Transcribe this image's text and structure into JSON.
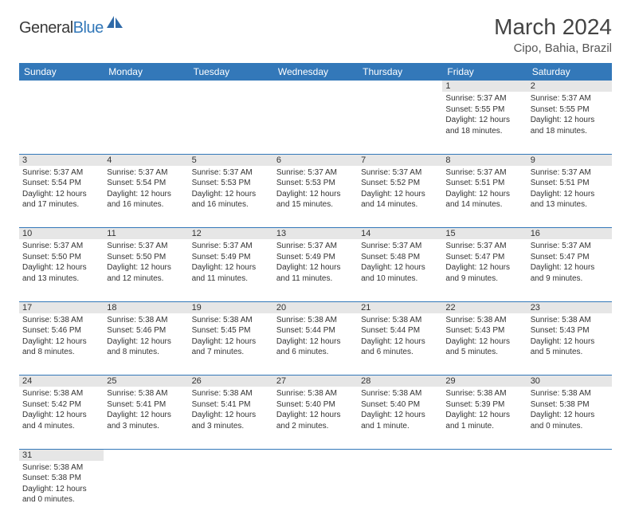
{
  "logo": {
    "part1": "General",
    "part2": "Blue"
  },
  "title": "March 2024",
  "location": "Cipo, Bahia, Brazil",
  "colors": {
    "header_bg": "#3378b9",
    "header_text": "#ffffff",
    "daynum_bg": "#e6e6e6",
    "border": "#3378b9",
    "logo_blue": "#3378b9",
    "logo_gray": "#3a3a3a",
    "body_text": "#333333"
  },
  "headers": [
    "Sunday",
    "Monday",
    "Tuesday",
    "Wednesday",
    "Thursday",
    "Friday",
    "Saturday"
  ],
  "weeks": [
    {
      "nums": [
        "",
        "",
        "",
        "",
        "",
        "1",
        "2"
      ],
      "cells": [
        "",
        "",
        "",
        "",
        "",
        "Sunrise: 5:37 AM\nSunset: 5:55 PM\nDaylight: 12 hours and 18 minutes.",
        "Sunrise: 5:37 AM\nSunset: 5:55 PM\nDaylight: 12 hours and 18 minutes."
      ]
    },
    {
      "nums": [
        "3",
        "4",
        "5",
        "6",
        "7",
        "8",
        "9"
      ],
      "cells": [
        "Sunrise: 5:37 AM\nSunset: 5:54 PM\nDaylight: 12 hours and 17 minutes.",
        "Sunrise: 5:37 AM\nSunset: 5:54 PM\nDaylight: 12 hours and 16 minutes.",
        "Sunrise: 5:37 AM\nSunset: 5:53 PM\nDaylight: 12 hours and 16 minutes.",
        "Sunrise: 5:37 AM\nSunset: 5:53 PM\nDaylight: 12 hours and 15 minutes.",
        "Sunrise: 5:37 AM\nSunset: 5:52 PM\nDaylight: 12 hours and 14 minutes.",
        "Sunrise: 5:37 AM\nSunset: 5:51 PM\nDaylight: 12 hours and 14 minutes.",
        "Sunrise: 5:37 AM\nSunset: 5:51 PM\nDaylight: 12 hours and 13 minutes."
      ]
    },
    {
      "nums": [
        "10",
        "11",
        "12",
        "13",
        "14",
        "15",
        "16"
      ],
      "cells": [
        "Sunrise: 5:37 AM\nSunset: 5:50 PM\nDaylight: 12 hours and 13 minutes.",
        "Sunrise: 5:37 AM\nSunset: 5:50 PM\nDaylight: 12 hours and 12 minutes.",
        "Sunrise: 5:37 AM\nSunset: 5:49 PM\nDaylight: 12 hours and 11 minutes.",
        "Sunrise: 5:37 AM\nSunset: 5:49 PM\nDaylight: 12 hours and 11 minutes.",
        "Sunrise: 5:37 AM\nSunset: 5:48 PM\nDaylight: 12 hours and 10 minutes.",
        "Sunrise: 5:37 AM\nSunset: 5:47 PM\nDaylight: 12 hours and 9 minutes.",
        "Sunrise: 5:37 AM\nSunset: 5:47 PM\nDaylight: 12 hours and 9 minutes."
      ]
    },
    {
      "nums": [
        "17",
        "18",
        "19",
        "20",
        "21",
        "22",
        "23"
      ],
      "cells": [
        "Sunrise: 5:38 AM\nSunset: 5:46 PM\nDaylight: 12 hours and 8 minutes.",
        "Sunrise: 5:38 AM\nSunset: 5:46 PM\nDaylight: 12 hours and 8 minutes.",
        "Sunrise: 5:38 AM\nSunset: 5:45 PM\nDaylight: 12 hours and 7 minutes.",
        "Sunrise: 5:38 AM\nSunset: 5:44 PM\nDaylight: 12 hours and 6 minutes.",
        "Sunrise: 5:38 AM\nSunset: 5:44 PM\nDaylight: 12 hours and 6 minutes.",
        "Sunrise: 5:38 AM\nSunset: 5:43 PM\nDaylight: 12 hours and 5 minutes.",
        "Sunrise: 5:38 AM\nSunset: 5:43 PM\nDaylight: 12 hours and 5 minutes."
      ]
    },
    {
      "nums": [
        "24",
        "25",
        "26",
        "27",
        "28",
        "29",
        "30"
      ],
      "cells": [
        "Sunrise: 5:38 AM\nSunset: 5:42 PM\nDaylight: 12 hours and 4 minutes.",
        "Sunrise: 5:38 AM\nSunset: 5:41 PM\nDaylight: 12 hours and 3 minutes.",
        "Sunrise: 5:38 AM\nSunset: 5:41 PM\nDaylight: 12 hours and 3 minutes.",
        "Sunrise: 5:38 AM\nSunset: 5:40 PM\nDaylight: 12 hours and 2 minutes.",
        "Sunrise: 5:38 AM\nSunset: 5:40 PM\nDaylight: 12 hours and 1 minute.",
        "Sunrise: 5:38 AM\nSunset: 5:39 PM\nDaylight: 12 hours and 1 minute.",
        "Sunrise: 5:38 AM\nSunset: 5:38 PM\nDaylight: 12 hours and 0 minutes."
      ]
    },
    {
      "nums": [
        "31",
        "",
        "",
        "",
        "",
        "",
        ""
      ],
      "cells": [
        "Sunrise: 5:38 AM\nSunset: 5:38 PM\nDaylight: 12 hours and 0 minutes.",
        "",
        "",
        "",
        "",
        "",
        ""
      ]
    }
  ]
}
